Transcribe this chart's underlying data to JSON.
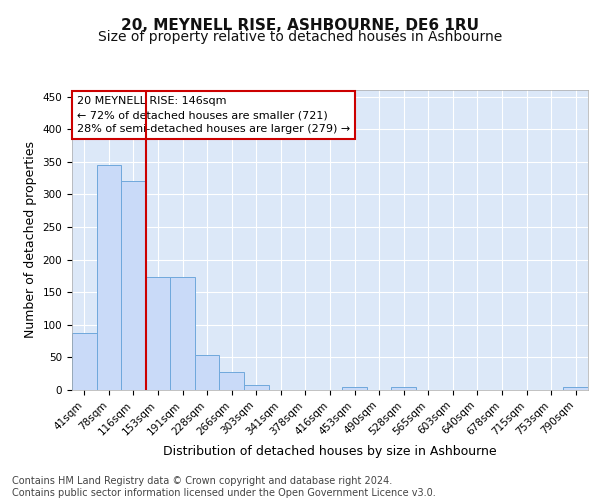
{
  "title": "20, MEYNELL RISE, ASHBOURNE, DE6 1RU",
  "subtitle": "Size of property relative to detached houses in Ashbourne",
  "xlabel": "Distribution of detached houses by size in Ashbourne",
  "ylabel": "Number of detached properties",
  "categories": [
    "41sqm",
    "78sqm",
    "116sqm",
    "153sqm",
    "191sqm",
    "228sqm",
    "266sqm",
    "303sqm",
    "341sqm",
    "378sqm",
    "416sqm",
    "453sqm",
    "490sqm",
    "528sqm",
    "565sqm",
    "603sqm",
    "640sqm",
    "678sqm",
    "715sqm",
    "753sqm",
    "790sqm"
  ],
  "values": [
    88,
    345,
    321,
    174,
    174,
    53,
    27,
    8,
    0,
    0,
    0,
    5,
    0,
    5,
    0,
    0,
    0,
    0,
    0,
    0,
    5
  ],
  "bar_color": "#c9daf8",
  "bar_edge_color": "#6fa8dc",
  "bar_width": 1.0,
  "vline_x": 2.5,
  "vline_color": "#cc0000",
  "annotation_text": "20 MEYNELL RISE: 146sqm\n← 72% of detached houses are smaller (721)\n28% of semi-detached houses are larger (279) →",
  "annotation_box_color": "#ffffff",
  "annotation_box_edge_color": "#cc0000",
  "ylim": [
    0,
    460
  ],
  "yticks": [
    0,
    50,
    100,
    150,
    200,
    250,
    300,
    350,
    400,
    450
  ],
  "footnote": "Contains HM Land Registry data © Crown copyright and database right 2024.\nContains public sector information licensed under the Open Government Licence v3.0.",
  "bg_color": "#ffffff",
  "plot_bg_color": "#dce8f8",
  "grid_color": "#ffffff",
  "title_fontsize": 11,
  "subtitle_fontsize": 10,
  "xlabel_fontsize": 9,
  "ylabel_fontsize": 9,
  "annotation_fontsize": 8,
  "footnote_fontsize": 7,
  "tick_fontsize": 7.5
}
